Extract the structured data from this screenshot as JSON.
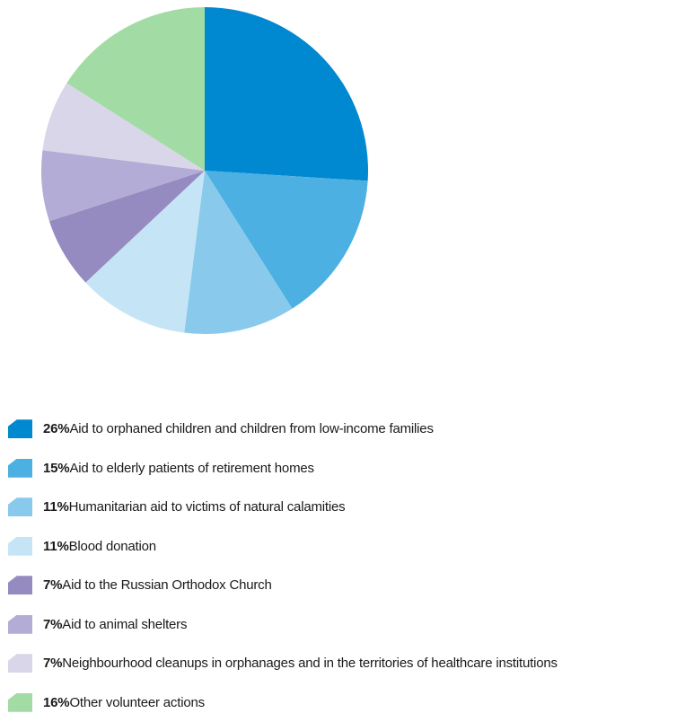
{
  "chart_data": {
    "type": "pie",
    "slices": [
      {
        "percent": 26,
        "percent_label": "26%",
        "label": "Aid to orphaned children and children from low-income families",
        "color": "#0088d1"
      },
      {
        "percent": 15,
        "percent_label": "15%",
        "label": "Aid to elderly patients of retirement homes",
        "color": "#4cb0e2"
      },
      {
        "percent": 11,
        "percent_label": "11%",
        "label": "Humanitarian aid to victims of natural calamities",
        "color": "#88c9ec"
      },
      {
        "percent": 11,
        "percent_label": "11%",
        "label": "Blood donation",
        "color": "#c5e5f6"
      },
      {
        "percent": 7,
        "percent_label": "7%",
        "label": "Aid to the Russian Orthodox Church",
        "color": "#968bc1"
      },
      {
        "percent": 7,
        "percent_label": "7%",
        "label": "Aid to animal shelters",
        "color": "#b3acd6"
      },
      {
        "percent": 7,
        "percent_label": "7%",
        "label": "Neighbourhood cleanups in orphanages and in the territories of healthcare institutions",
        "color": "#d9d6ea"
      },
      {
        "percent": 16,
        "percent_label": "16%",
        "label": "Other volunteer actions",
        "color": "#a2dba3"
      }
    ],
    "start": "12 o'clock",
    "direction": "clockwise",
    "legend_position": "bottom"
  }
}
